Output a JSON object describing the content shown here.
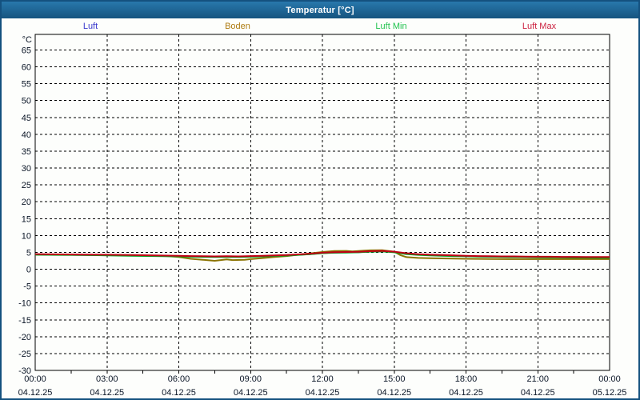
{
  "window": {
    "title": "Temperatur [°C]"
  },
  "colors": {
    "titlebar_accent": "#1E6496",
    "window_border": "#14517F",
    "chart_background": "#FDFEFC",
    "grid": "#000000",
    "axis_text": "#0A1526"
  },
  "chart_data": {
    "type": "line",
    "title": "Temperatur [°C]",
    "ylabel": "°C",
    "xlabel": "",
    "ylim": [
      -30,
      69
    ],
    "ytick_min": -30,
    "ytick_max": 65,
    "ytick_step": 5,
    "xlim_hours": [
      0,
      24
    ],
    "grid": "dashed",
    "legend_position": "top",
    "x_ticks": [
      {
        "t": 0,
        "time": "00:00",
        "date": "04.12.25"
      },
      {
        "t": 3,
        "time": "03:00",
        "date": "04.12.25"
      },
      {
        "t": 6,
        "time": "06:00",
        "date": "04.12.25"
      },
      {
        "t": 9,
        "time": "09:00",
        "date": "04.12.25"
      },
      {
        "t": 12,
        "time": "12:00",
        "date": "04.12.25"
      },
      {
        "t": 15,
        "time": "15:00",
        "date": "04.12.25"
      },
      {
        "t": 18,
        "time": "18:00",
        "date": "04.12.25"
      },
      {
        "t": 21,
        "time": "21:00",
        "date": "04.12.25"
      },
      {
        "t": 24,
        "time": "00:00",
        "date": "05.12.25"
      }
    ],
    "series": [
      {
        "name": "Luft",
        "color": "#0000B4",
        "legend_color": "#3A3ACD",
        "points": [
          [
            0,
            4.4
          ],
          [
            1,
            4.3
          ],
          [
            2,
            4.25
          ],
          [
            3,
            4.2
          ],
          [
            4,
            4.1
          ],
          [
            5,
            4.0
          ],
          [
            6,
            3.9
          ],
          [
            6.5,
            3.8
          ],
          [
            7,
            3.75
          ],
          [
            7.5,
            3.7
          ],
          [
            8,
            3.75
          ],
          [
            8.5,
            3.7
          ],
          [
            9,
            3.8
          ],
          [
            9.5,
            3.9
          ],
          [
            10,
            4.0
          ],
          [
            10.5,
            4.1
          ],
          [
            11,
            4.3
          ],
          [
            11.5,
            4.5
          ],
          [
            12,
            4.8
          ],
          [
            12.5,
            4.95
          ],
          [
            13,
            5.0
          ],
          [
            13.5,
            5.05
          ],
          [
            14,
            5.25
          ],
          [
            14.5,
            5.35
          ],
          [
            15,
            5.1
          ],
          [
            15.5,
            4.6
          ],
          [
            16,
            4.3
          ],
          [
            16.5,
            4.2
          ],
          [
            17,
            4.1
          ],
          [
            17.5,
            4.0
          ],
          [
            18,
            3.9
          ],
          [
            18.5,
            3.8
          ],
          [
            19,
            3.75
          ],
          [
            19.5,
            3.7
          ],
          [
            20,
            3.7
          ],
          [
            20.5,
            3.65
          ],
          [
            21,
            3.6
          ],
          [
            21.5,
            3.6
          ],
          [
            22,
            3.55
          ],
          [
            22.5,
            3.55
          ],
          [
            23,
            3.5
          ],
          [
            23.5,
            3.5
          ],
          [
            24,
            3.5
          ]
        ]
      },
      {
        "name": "Boden",
        "color": "#8B7300",
        "legend_color": "#AE7B10",
        "points": [
          [
            0,
            4.35
          ],
          [
            1,
            4.3
          ],
          [
            2,
            4.25
          ],
          [
            3,
            4.2
          ],
          [
            4,
            4.1
          ],
          [
            5,
            4.0
          ],
          [
            5.5,
            3.9
          ],
          [
            6,
            3.6
          ],
          [
            6.5,
            3.1
          ],
          [
            7,
            2.8
          ],
          [
            7.5,
            2.5
          ],
          [
            8,
            2.9
          ],
          [
            8.25,
            2.7
          ],
          [
            8.75,
            2.8
          ],
          [
            9,
            3.0
          ],
          [
            9.5,
            3.3
          ],
          [
            10,
            3.6
          ],
          [
            10.5,
            3.9
          ],
          [
            11,
            4.3
          ],
          [
            11.5,
            4.7
          ],
          [
            12,
            5.1
          ],
          [
            12.5,
            5.4
          ],
          [
            13,
            5.45
          ],
          [
            13.25,
            5.3
          ],
          [
            13.75,
            5.5
          ],
          [
            14,
            5.6
          ],
          [
            14.5,
            5.65
          ],
          [
            15,
            5.2
          ],
          [
            15.25,
            4.2
          ],
          [
            15.5,
            3.6
          ],
          [
            16,
            3.35
          ],
          [
            16.5,
            3.25
          ],
          [
            17,
            3.2
          ],
          [
            17.5,
            3.15
          ],
          [
            18,
            3.1
          ],
          [
            19,
            3.05
          ],
          [
            20,
            3.0
          ],
          [
            21,
            3.0
          ],
          [
            22,
            3.0
          ],
          [
            23,
            3.0
          ],
          [
            24,
            3.0
          ]
        ]
      },
      {
        "name": "Luft Min",
        "color": "#00A41E",
        "legend_color": "#21C24E",
        "points": [
          [
            0,
            4.3
          ],
          [
            1,
            4.25
          ],
          [
            2,
            4.2
          ],
          [
            3,
            4.1
          ],
          [
            4,
            4.0
          ],
          [
            5,
            3.9
          ],
          [
            6,
            3.8
          ],
          [
            6.5,
            3.7
          ],
          [
            7,
            3.65
          ],
          [
            7.5,
            3.6
          ],
          [
            8,
            3.65
          ],
          [
            8.5,
            3.6
          ],
          [
            9,
            3.7
          ],
          [
            9.5,
            3.8
          ],
          [
            10,
            3.95
          ],
          [
            10.5,
            4.05
          ],
          [
            11,
            4.25
          ],
          [
            11.5,
            4.45
          ],
          [
            12,
            4.75
          ],
          [
            12.5,
            4.9
          ],
          [
            13,
            4.95
          ],
          [
            13.5,
            5.0
          ],
          [
            14,
            5.2
          ],
          [
            14.5,
            5.3
          ],
          [
            15,
            5.0
          ],
          [
            15.5,
            4.5
          ],
          [
            16,
            4.25
          ],
          [
            16.5,
            4.1
          ],
          [
            17,
            4.0
          ],
          [
            17.5,
            3.9
          ],
          [
            18,
            3.85
          ],
          [
            18.5,
            3.75
          ],
          [
            19,
            3.7
          ],
          [
            19.5,
            3.65
          ],
          [
            20,
            3.6
          ],
          [
            20.5,
            3.6
          ],
          [
            21,
            3.55
          ],
          [
            21.5,
            3.5
          ],
          [
            22,
            3.5
          ],
          [
            22.5,
            3.45
          ],
          [
            23,
            3.45
          ],
          [
            23.5,
            3.4
          ],
          [
            24,
            3.4
          ]
        ]
      },
      {
        "name": "Luft Max",
        "color": "#C00014",
        "legend_color": "#CC2240",
        "points": [
          [
            0,
            4.5
          ],
          [
            1,
            4.4
          ],
          [
            2,
            4.35
          ],
          [
            3,
            4.3
          ],
          [
            4,
            4.2
          ],
          [
            5,
            4.1
          ],
          [
            6,
            4.0
          ],
          [
            6.5,
            3.9
          ],
          [
            7,
            3.85
          ],
          [
            7.5,
            3.8
          ],
          [
            8,
            3.85
          ],
          [
            8.5,
            3.8
          ],
          [
            9,
            3.9
          ],
          [
            9.5,
            4.0
          ],
          [
            10,
            4.1
          ],
          [
            10.5,
            4.2
          ],
          [
            11,
            4.4
          ],
          [
            11.5,
            4.6
          ],
          [
            12,
            4.9
          ],
          [
            12.5,
            5.05
          ],
          [
            13,
            5.1
          ],
          [
            13.5,
            5.15
          ],
          [
            14,
            5.35
          ],
          [
            14.5,
            5.45
          ],
          [
            15,
            5.2
          ],
          [
            15.5,
            4.75
          ],
          [
            16,
            4.45
          ],
          [
            16.5,
            4.3
          ],
          [
            17,
            4.2
          ],
          [
            17.5,
            4.1
          ],
          [
            18,
            4.0
          ],
          [
            18.5,
            3.9
          ],
          [
            19,
            3.85
          ],
          [
            19.5,
            3.8
          ],
          [
            20,
            3.8
          ],
          [
            20.5,
            3.75
          ],
          [
            21,
            3.7
          ],
          [
            21.5,
            3.7
          ],
          [
            22,
            3.65
          ],
          [
            22.5,
            3.65
          ],
          [
            23,
            3.6
          ],
          [
            23.5,
            3.6
          ],
          [
            24,
            3.6
          ]
        ]
      }
    ]
  }
}
